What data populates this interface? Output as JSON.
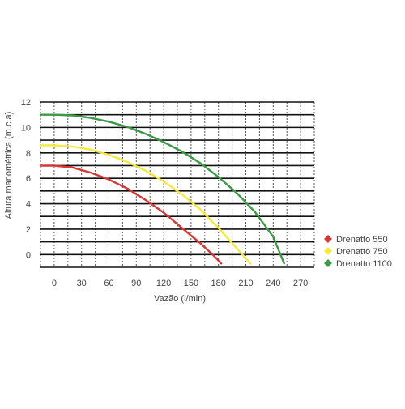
{
  "chart_data": {
    "type": "line",
    "title": "",
    "xlabel": "Vazão (l/min)",
    "ylabel": "Altura manométrica (m.c.a)",
    "xlim": [
      -15,
      285
    ],
    "ylim": [
      -1,
      12
    ],
    "xticks": [
      0,
      30,
      60,
      90,
      120,
      150,
      180,
      210,
      240,
      270
    ],
    "yticks": [
      0,
      2,
      4,
      6,
      8,
      10,
      12
    ],
    "grid": true,
    "legend_position": "right",
    "series": [
      {
        "name": "Drenatto 550",
        "color": "#d93636",
        "x": [
          -15,
          0,
          20,
          40,
          60,
          80,
          100,
          120,
          140,
          160,
          175,
          183
        ],
        "y": [
          7.0,
          7.0,
          6.85,
          6.45,
          5.9,
          5.2,
          4.3,
          3.3,
          2.1,
          0.9,
          -0.1,
          -0.7
        ]
      },
      {
        "name": "Drenatto 750",
        "color": "#f5e93a",
        "x": [
          -15,
          0,
          20,
          40,
          60,
          80,
          100,
          120,
          140,
          160,
          180,
          200,
          215
        ],
        "y": [
          8.6,
          8.6,
          8.5,
          8.25,
          7.85,
          7.3,
          6.6,
          5.75,
          4.75,
          3.55,
          2.1,
          0.5,
          -0.7
        ]
      },
      {
        "name": "Drenatto 1100",
        "color": "#3a9a45",
        "x": [
          -15,
          0,
          20,
          40,
          60,
          80,
          100,
          120,
          140,
          160,
          180,
          200,
          220,
          240,
          252
        ],
        "y": [
          11.0,
          11.0,
          10.95,
          10.75,
          10.45,
          10.05,
          9.5,
          8.85,
          8.1,
          7.2,
          6.1,
          4.85,
          3.35,
          1.4,
          -0.7
        ]
      }
    ]
  }
}
